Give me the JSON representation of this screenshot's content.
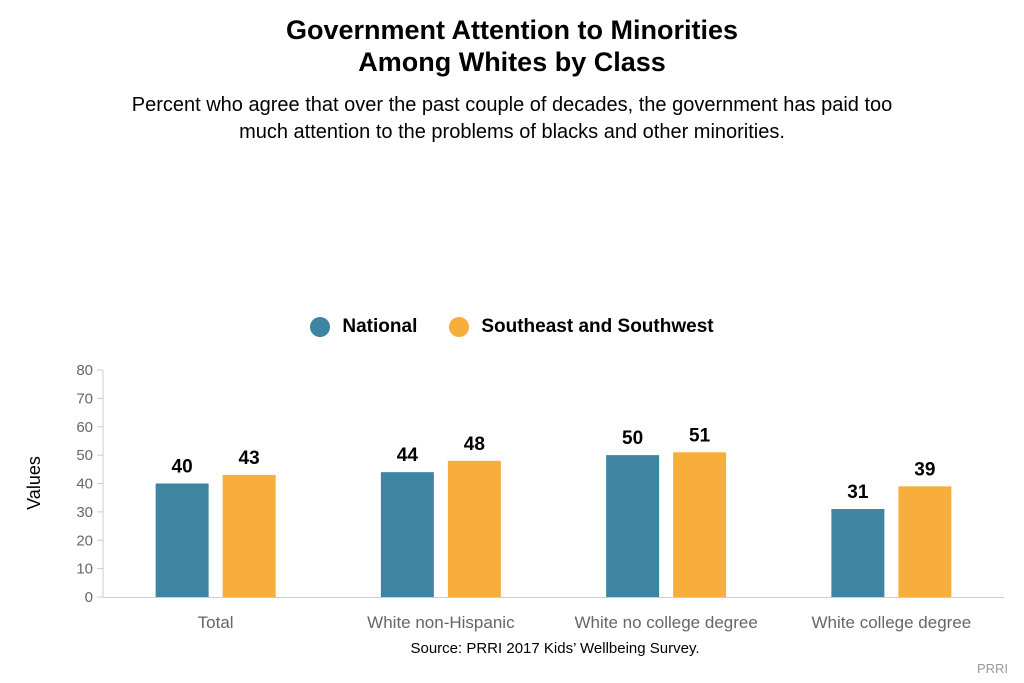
{
  "title": {
    "line1": "Government Attention to Minorities",
    "line2": "Among Whites by Class"
  },
  "subtitle": {
    "line1": "Percent who agree that over the past couple of decades, the government has paid too",
    "line2": "much attention to the problems of blacks and other minorities."
  },
  "legend": [
    {
      "label": "National",
      "color": "#3d85a0"
    },
    {
      "label": "Southeast and Southwest",
      "color": "#f7ae3c"
    }
  ],
  "source": "Source: PRRI 2017 Kids’ Wellbeing Survey.",
  "credit": "PRRI",
  "chart_data": {
    "type": "bar",
    "categories": [
      "Total",
      "White non-Hispanic",
      "White no college degree",
      "White college degree"
    ],
    "series": [
      {
        "name": "National",
        "values": [
          40,
          44,
          50,
          31
        ],
        "color": "#3d85a0"
      },
      {
        "name": "Southeast and Southwest",
        "values": [
          43,
          48,
          51,
          39
        ],
        "color": "#f7ae3c"
      }
    ],
    "xlabel": "",
    "ylabel": "Values",
    "ylim": [
      0,
      80
    ],
    "yticks": [
      0,
      10,
      20,
      30,
      40,
      50,
      60,
      70,
      80
    ],
    "grid": false,
    "legend_position": "top-center",
    "data_labels": true
  }
}
